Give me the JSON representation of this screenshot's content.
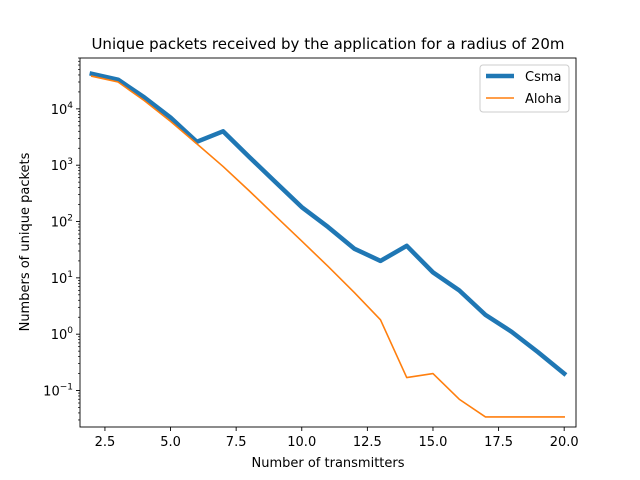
{
  "chart_data": {
    "type": "line",
    "title": "Unique packets received by the application for a radius of 20m",
    "xlabel": "Number of transmitters",
    "ylabel": "Numbers of unique packets",
    "xlim": [
      1.55,
      20.45
    ],
    "ylim": [
      0.0225,
      80000
    ],
    "yscale": "log",
    "xticks": [
      2.5,
      5.0,
      7.5,
      10.0,
      12.5,
      15.0,
      17.5,
      20.0
    ],
    "xtick_labels": [
      "2.5",
      "5.0",
      "7.5",
      "10.0",
      "12.5",
      "15.0",
      "17.5",
      "20.0"
    ],
    "yticks": [
      0.1,
      1,
      10,
      100,
      1000,
      10000
    ],
    "ytick_labels": [
      {
        "base": "10",
        "exp": "−1"
      },
      {
        "base": "10",
        "exp": "0"
      },
      {
        "base": "10",
        "exp": "1"
      },
      {
        "base": "10",
        "exp": "2"
      },
      {
        "base": "10",
        "exp": "3"
      },
      {
        "base": "10",
        "exp": "4"
      }
    ],
    "grid": false,
    "legend_position": "top-right",
    "x": [
      2,
      3,
      4,
      5,
      6,
      7,
      8,
      9,
      10,
      11,
      12,
      13,
      14,
      15,
      16,
      17,
      18,
      19,
      20
    ],
    "series": [
      {
        "name": "Csma",
        "color": "#1f77b4",
        "values": [
          42000,
          33000,
          16000,
          7000,
          2600,
          4000,
          1400,
          500,
          180,
          80,
          33,
          20,
          37,
          12.5,
          6,
          2.2,
          1.1,
          0.48,
          0.2
        ]
      },
      {
        "name": "Aloha",
        "color": "#ff7f0e",
        "values": [
          38000,
          30000,
          14000,
          6000,
          2400,
          950,
          350,
          125,
          45,
          16,
          5.5,
          1.8,
          0.17,
          0.2,
          0.07,
          0.034,
          0.034,
          0.034,
          0.034
        ]
      }
    ]
  }
}
